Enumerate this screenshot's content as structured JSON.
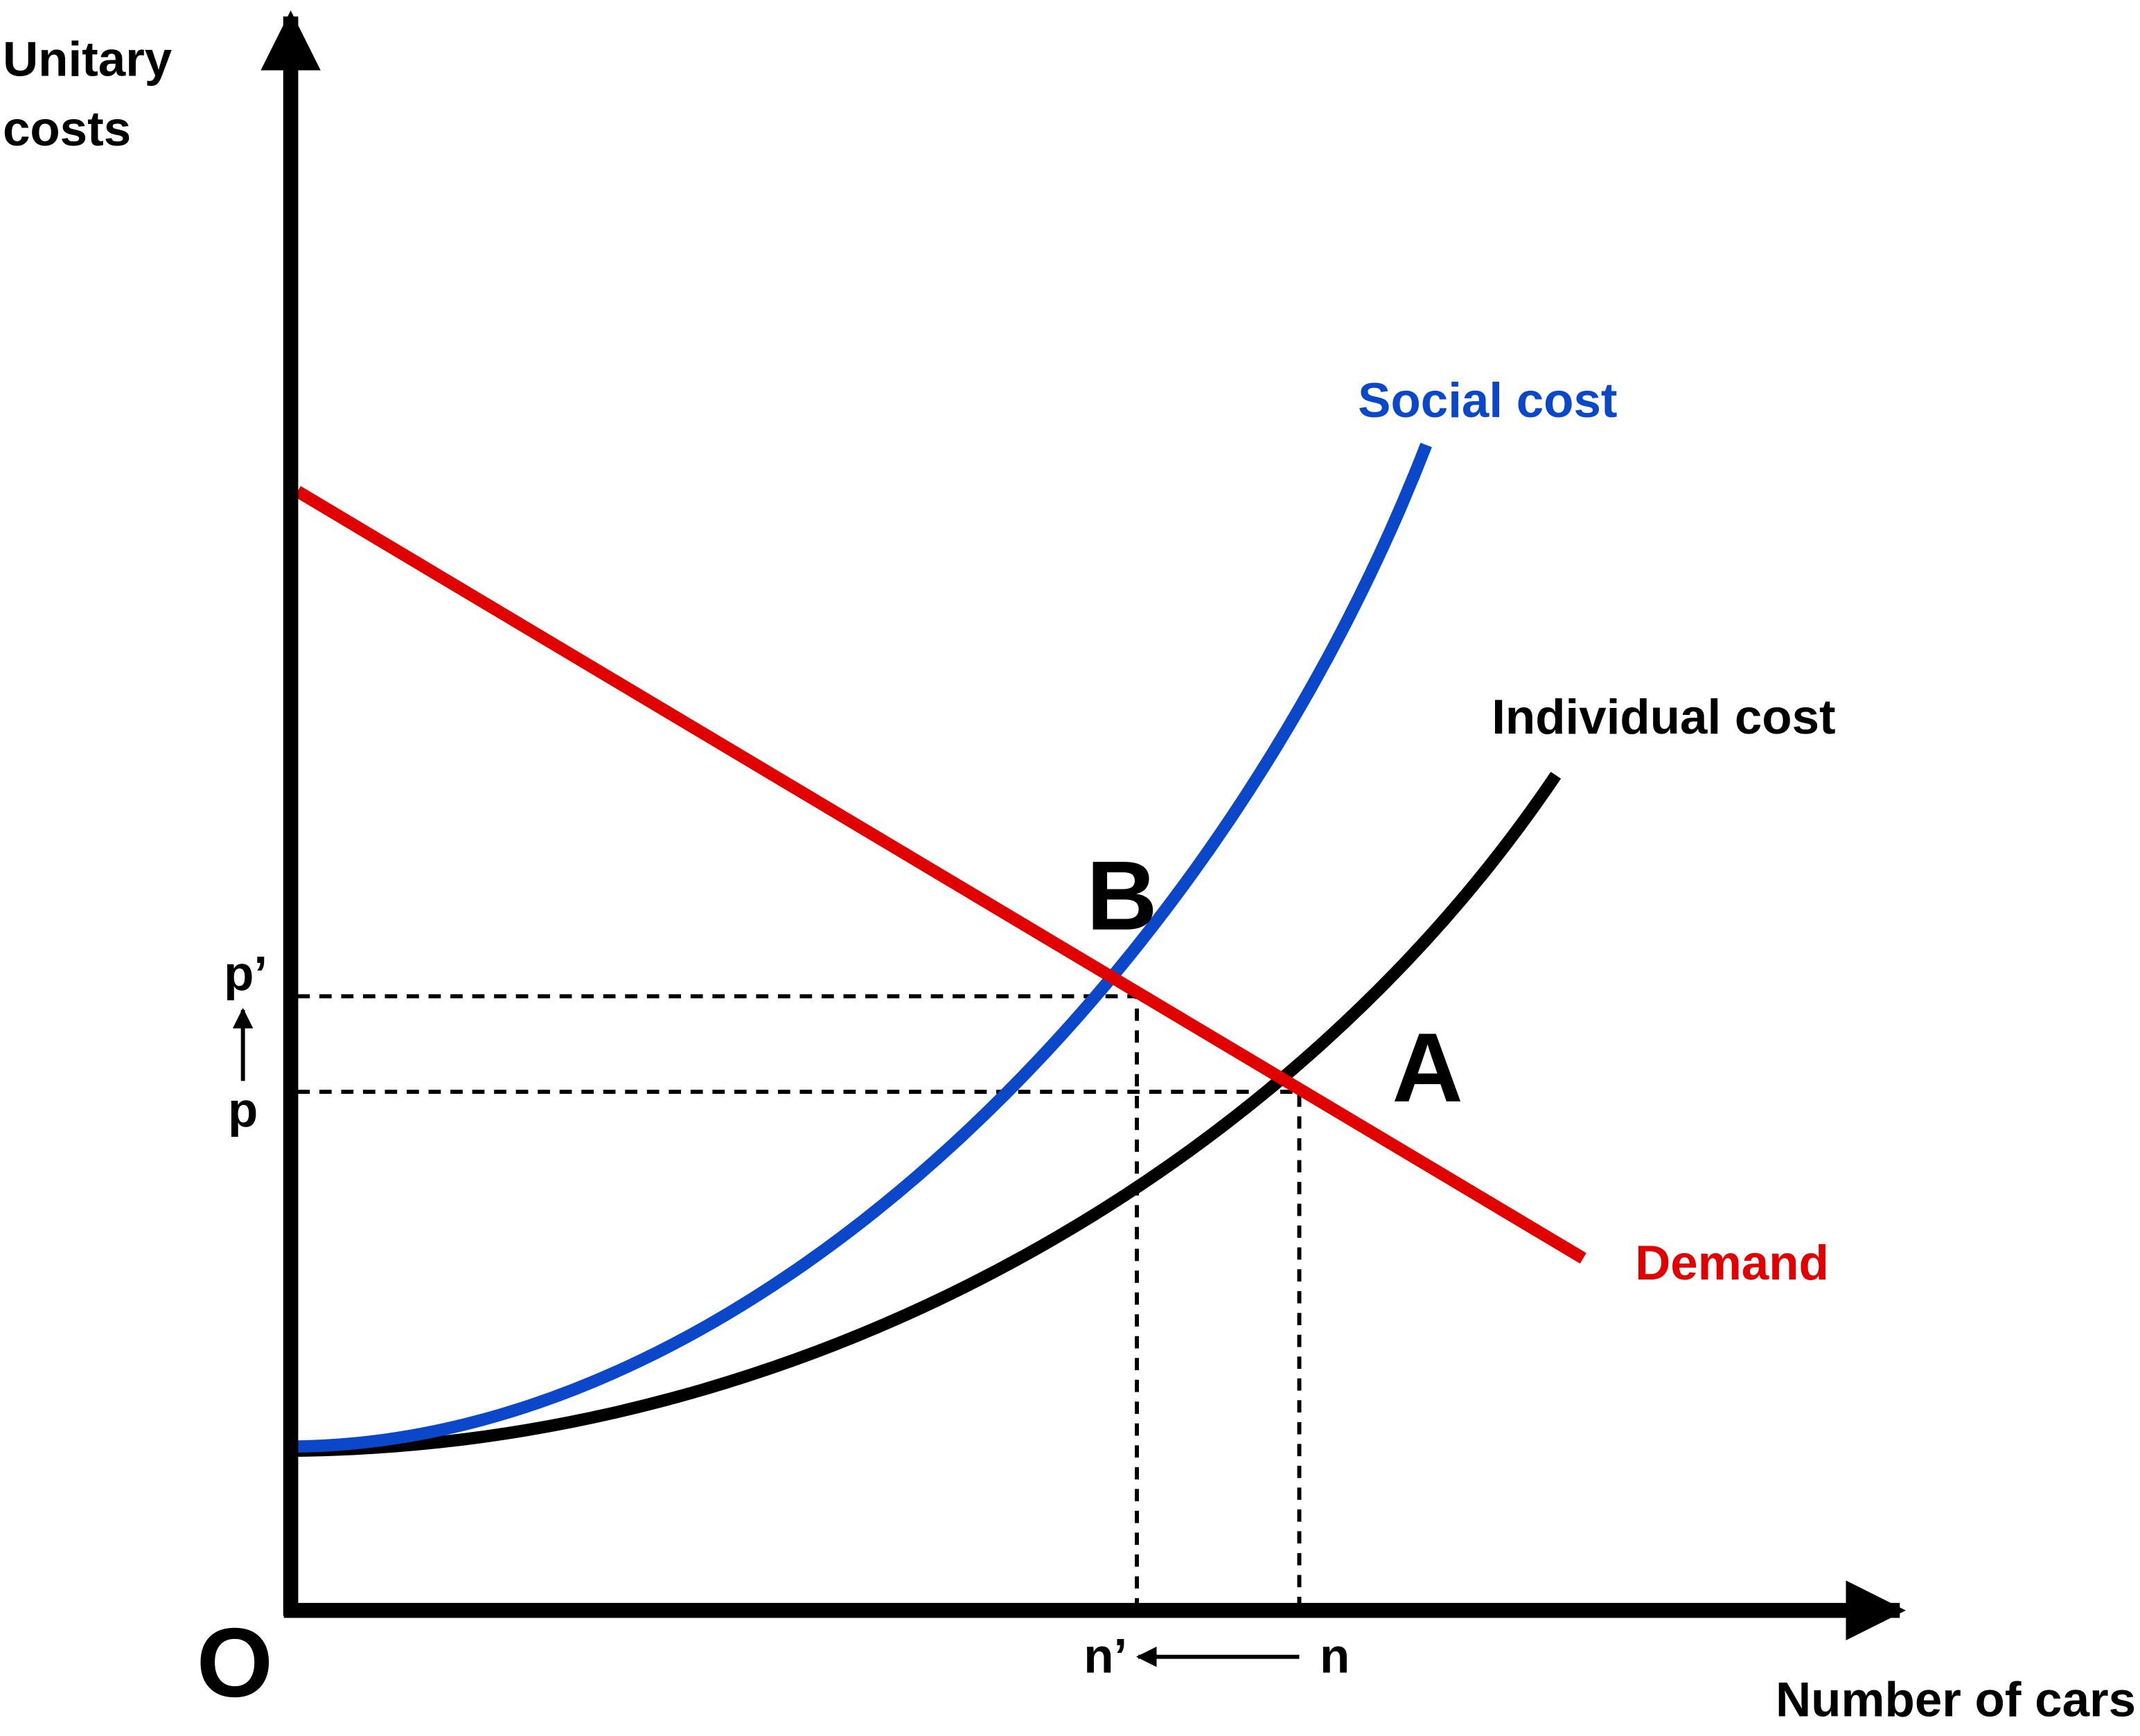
{
  "axes": {
    "y_label": [
      "Unitary",
      "costs"
    ],
    "x_label": "Number of cars",
    "origin": "O"
  },
  "curves": {
    "social_cost": "Social cost",
    "individual_cost": "Individual cost",
    "demand": "Demand"
  },
  "points": {
    "b": "B",
    "a": "A"
  },
  "y_marks": {
    "p_prime": "p’",
    "p": "p"
  },
  "x_marks": {
    "n_prime": "n’",
    "n": "n"
  }
}
